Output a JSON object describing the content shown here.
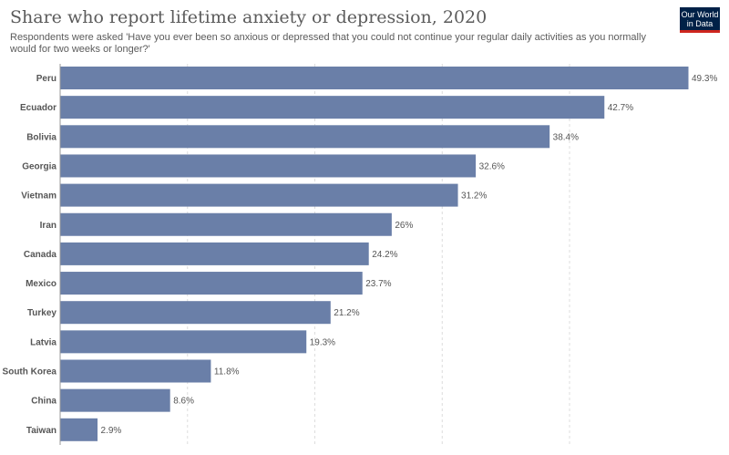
{
  "header": {
    "title": "Share who report lifetime anxiety or depression, 2020",
    "subtitle": "Respondents were asked 'Have you ever been so anxious or depressed that you could not continue your regular daily activities as you normally would for two weeks or longer?'"
  },
  "logo": {
    "line1": "Our World",
    "line2": "in Data"
  },
  "colors": {
    "bar": "#6a7fa8",
    "grid": "#dddddd",
    "axis": "#999999"
  },
  "chart_data": {
    "type": "bar",
    "orientation": "horizontal",
    "categories": [
      "Peru",
      "Ecuador",
      "Bolivia",
      "Georgia",
      "Vietnam",
      "Iran",
      "Canada",
      "Mexico",
      "Turkey",
      "Latvia",
      "South Korea",
      "China",
      "Taiwan"
    ],
    "values": [
      49.3,
      42.7,
      38.4,
      32.6,
      31.2,
      26,
      24.2,
      23.7,
      21.2,
      19.3,
      11.8,
      8.6,
      2.9
    ],
    "labels": [
      "49.3%",
      "42.7%",
      "38.4%",
      "32.6%",
      "31.2%",
      "26%",
      "24.2%",
      "23.7%",
      "21.2%",
      "19.3%",
      "11.8%",
      "8.6%",
      "2.9%"
    ],
    "xlim": [
      0,
      49.3
    ],
    "gridlines": [
      10,
      20,
      30,
      40
    ],
    "grid": true,
    "unit": "%"
  }
}
